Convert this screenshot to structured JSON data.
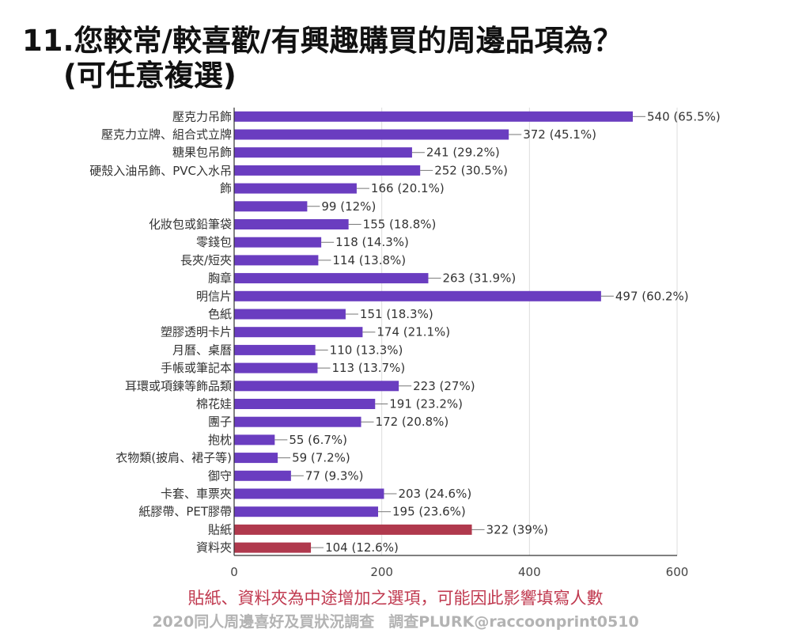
{
  "title": {
    "line1": "11.您較常/較喜歡/有興趣購買的周邊品項為？",
    "line2": "(可任意複選)"
  },
  "note": "貼紙、資料夾為中途增加之選項，可能因此影響填寫人數",
  "footer": {
    "left": "2020同人周邊喜好及買狀況調查",
    "right": "調查PLURK@raccoonprint0510"
  },
  "colors": {
    "primary_bar": "#6a3dc0",
    "highlight_bar": "#b0394d",
    "grid": "#dddddd",
    "axis": "#333333"
  },
  "chart_data": {
    "type": "bar",
    "orientation": "horizontal",
    "categories": [
      "壓克力吊飾",
      "壓克力立牌、組合式立牌",
      "糖果包吊飾",
      "",
      "",
      "",
      "化妝包或鉛筆袋",
      "零錢包",
      "長夾/短夾",
      "胸章",
      "明信片",
      "色紙",
      "塑膠透明卡片",
      "月曆、桌曆",
      "手帳或筆記本",
      "耳環或項鍊等飾品類",
      "棉花娃",
      "團子",
      "抱枕",
      "衣物類(披肩、裙子等)",
      "御守",
      "卡套、車票夾",
      "紙膠帶、PET膠帶",
      "貼紙",
      "資料夾"
    ],
    "wrapped_label": {
      "lines": [
        "硬殼入油吊飾、PVC入水吊",
        "飾"
      ],
      "rows": [
        3,
        4
      ]
    },
    "values": [
      540,
      372,
      241,
      252,
      166,
      99,
      155,
      118,
      114,
      263,
      497,
      151,
      174,
      110,
      113,
      223,
      191,
      172,
      55,
      59,
      77,
      203,
      195,
      322,
      104
    ],
    "data_labels": [
      "540 (65.5%)",
      "372 (45.1%)",
      "241 (29.2%)",
      "252 (30.5%)",
      "166 (20.1%)",
      "99 (12%)",
      "155 (18.8%)",
      "118 (14.3%)",
      "114 (13.8%)",
      "263 (31.9%)",
      "497 (60.2%)",
      "151 (18.3%)",
      "174 (21.1%)",
      "110 (13.3%)",
      "113 (13.7%)",
      "223 (27%)",
      "191 (23.2%)",
      "172 (20.8%)",
      "55 (6.7%)",
      "59 (7.2%)",
      "77 (9.3%)",
      "203 (24.6%)",
      "195 (23.6%)",
      "322 (39%)",
      "104 (12.6%)"
    ],
    "highlighted_indices": [
      23,
      24
    ],
    "xlim": [
      0,
      600
    ],
    "xticks": [
      0,
      200,
      400,
      600
    ],
    "grid": true,
    "legend": "none"
  }
}
